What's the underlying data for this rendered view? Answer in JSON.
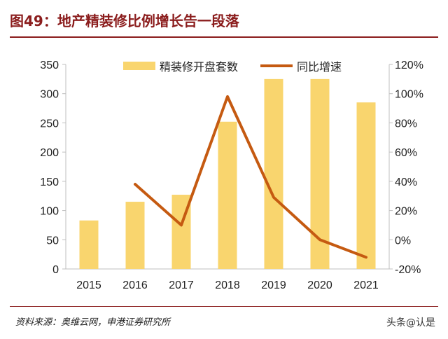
{
  "header": {
    "title": "图49：地产精装修比例增长告一段落"
  },
  "footer": {
    "source": "资料来源：奥维云网，申港证券研究所",
    "watermark": "头条@认是"
  },
  "chart_data": {
    "type": "bar",
    "categories": [
      "2015",
      "2016",
      "2017",
      "2018",
      "2019",
      "2020",
      "2021"
    ],
    "series": [
      {
        "name": "精装修开盘套数",
        "type": "bar",
        "axis": "left",
        "color": "#f9d56e",
        "values": [
          83,
          115,
          127,
          252,
          325,
          325,
          285
        ]
      },
      {
        "name": "同比增速",
        "type": "line",
        "axis": "right",
        "color": "#c55a11",
        "values": [
          null,
          38,
          10,
          98,
          29,
          0,
          -12
        ]
      }
    ],
    "ylim_left": [
      0,
      350
    ],
    "yticks_left": [
      "0",
      "50",
      "100",
      "150",
      "200",
      "250",
      "300",
      "350"
    ],
    "ylim_right": [
      -20,
      120
    ],
    "yticks_right": [
      "-20%",
      "0%",
      "20%",
      "40%",
      "60%",
      "80%",
      "100%",
      "120%"
    ],
    "legend_position": "top"
  }
}
